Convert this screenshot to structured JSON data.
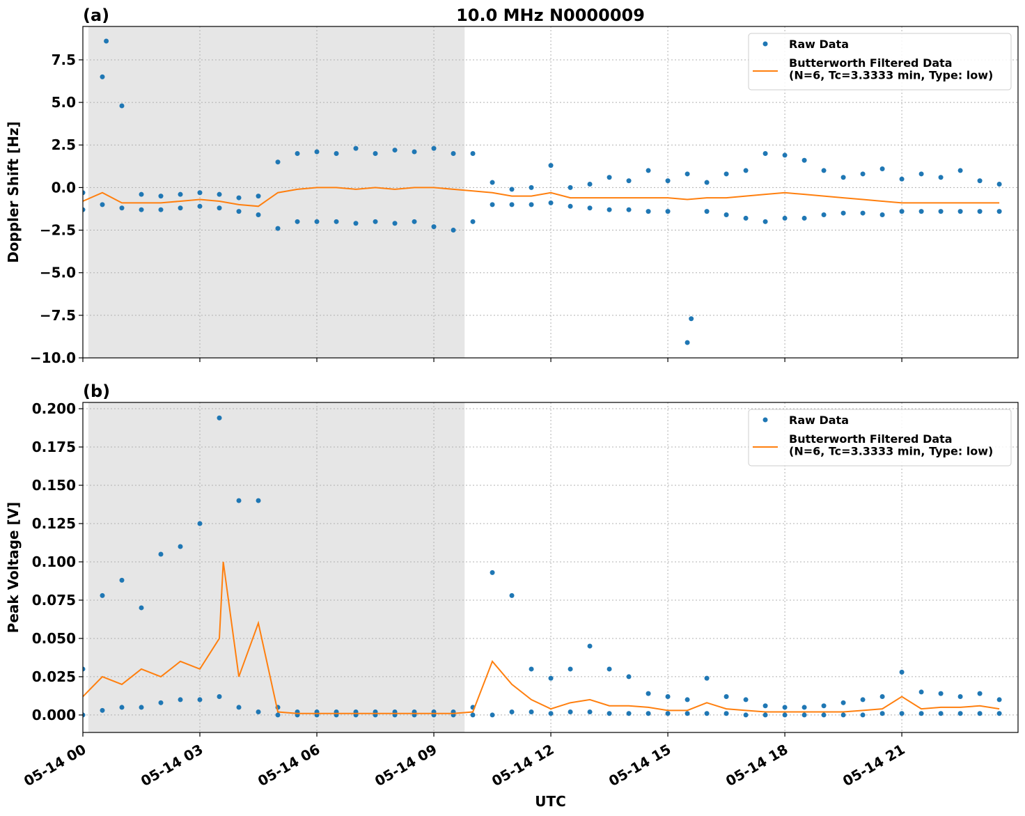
{
  "chart_data": [
    {
      "type": "scatter",
      "title": "10.0 MHz N0000009",
      "panel_label": "(a)",
      "ylabel": "Doppler Shift [Hz]",
      "xlim": [
        0,
        23.98
      ],
      "ylim": [
        -10,
        9.46
      ],
      "grid": true,
      "legend": "upper right",
      "shade": [
        0.14,
        9.79
      ],
      "xticks": [
        0,
        3,
        6,
        9,
        12,
        15,
        18,
        21
      ],
      "yticks": [
        {
          "value": -10,
          "label": "−10.0"
        },
        {
          "value": -7.5,
          "label": "−7.5"
        },
        {
          "value": -5,
          "label": "−5.0"
        },
        {
          "value": -2.5,
          "label": "−2.5"
        },
        {
          "value": 0,
          "label": "0.0"
        },
        {
          "value": 2.5,
          "label": "2.5"
        },
        {
          "value": 5,
          "label": "5.0"
        },
        {
          "value": 7.5,
          "label": "7.5"
        }
      ],
      "series": [
        {
          "name": "Raw Data",
          "style": "points",
          "color": "#1f77b4",
          "x": [
            0,
            0,
            0.5,
            0.5,
            1,
            1,
            1.5,
            1.5,
            2,
            2,
            2.5,
            2.5,
            3,
            3,
            3.5,
            3.5,
            4,
            4,
            4.5,
            4.5,
            5,
            5,
            5.5,
            5.5,
            6,
            6,
            6.5,
            6.5,
            7,
            7,
            7.5,
            7.5,
            8,
            8,
            8.5,
            8.5,
            9,
            9,
            9.5,
            9.5,
            10,
            10,
            10.5,
            10.5,
            11,
            11,
            11.5,
            11.5,
            12,
            12,
            12.5,
            12.5,
            13,
            13,
            13.5,
            13.5,
            14,
            14,
            14.5,
            14.5,
            15,
            15,
            15.5,
            15.5,
            16,
            16,
            16.5,
            16.5,
            17,
            17,
            17.5,
            17.5,
            18,
            18,
            18.5,
            18.5,
            19,
            19,
            19.5,
            19.5,
            20,
            20,
            20.5,
            20.5,
            21,
            21,
            21.5,
            21.5,
            22,
            22,
            22.5,
            22.5,
            23,
            23,
            23.5,
            23.5,
            0.6,
            15.6
          ],
          "values": [
            -0.3,
            -1.3,
            6.5,
            -1.0,
            4.8,
            -1.2,
            -0.4,
            -1.3,
            -0.5,
            -1.3,
            -0.4,
            -1.2,
            -0.3,
            -1.1,
            -0.4,
            -1.2,
            -0.6,
            -1.4,
            -0.5,
            -1.6,
            1.5,
            -2.4,
            2.0,
            -2.0,
            2.1,
            -2.0,
            2.0,
            -2.0,
            2.3,
            -2.1,
            2.0,
            -2.0,
            2.2,
            -2.1,
            2.1,
            -2.0,
            2.3,
            -2.3,
            2.0,
            -2.5,
            2.0,
            -2.0,
            0.3,
            -1.0,
            -0.1,
            -1.0,
            0.0,
            -1.0,
            1.3,
            -0.9,
            0.0,
            -1.1,
            0.2,
            -1.2,
            0.6,
            -1.3,
            0.4,
            -1.3,
            1.0,
            -1.4,
            0.4,
            -1.4,
            0.8,
            -9.1,
            0.3,
            -1.4,
            0.8,
            -1.6,
            1.0,
            -1.8,
            2.0,
            -2.0,
            1.9,
            -1.8,
            1.6,
            -1.8,
            1.0,
            -1.6,
            0.6,
            -1.5,
            0.8,
            -1.5,
            1.1,
            -1.6,
            0.5,
            -1.4,
            0.8,
            -1.4,
            0.6,
            -1.4,
            1.0,
            -1.4,
            0.4,
            -1.4,
            0.2,
            -1.4,
            8.6,
            -7.7
          ]
        },
        {
          "name": "Butterworth Filtered Data\n(N=6, Tc=3.3333 min, Type: low)",
          "style": "line",
          "color": "#ff7f0e",
          "x": [
            0,
            0.5,
            1,
            1.5,
            2,
            2.5,
            3,
            3.5,
            4,
            4.5,
            5,
            5.5,
            6,
            6.5,
            7,
            7.5,
            8,
            8.5,
            9,
            9.5,
            10,
            10.5,
            11,
            11.5,
            12,
            12.5,
            13,
            13.5,
            14,
            14.5,
            15,
            15.5,
            16,
            16.5,
            17,
            17.5,
            18,
            18.5,
            19,
            19.5,
            20,
            20.5,
            21,
            21.5,
            22,
            22.5,
            23,
            23.5
          ],
          "values": [
            -0.8,
            -0.3,
            -0.9,
            -0.9,
            -0.9,
            -0.8,
            -0.7,
            -0.8,
            -1.0,
            -1.1,
            -0.3,
            -0.1,
            0.0,
            0.0,
            -0.1,
            0.0,
            -0.1,
            0.0,
            0.0,
            -0.1,
            -0.2,
            -0.3,
            -0.5,
            -0.5,
            -0.3,
            -0.6,
            -0.6,
            -0.6,
            -0.6,
            -0.6,
            -0.6,
            -0.7,
            -0.6,
            -0.6,
            -0.5,
            -0.4,
            -0.3,
            -0.4,
            -0.5,
            -0.6,
            -0.7,
            -0.8,
            -0.9,
            -0.9,
            -0.9,
            -0.9,
            -0.9,
            -0.9
          ]
        }
      ]
    },
    {
      "type": "scatter",
      "panel_label": "(b)",
      "ylabel": "Peak Voltage [V]",
      "xlabel": "UTC",
      "xlim": [
        0,
        23.98
      ],
      "ylim": [
        -0.0114,
        0.2041
      ],
      "grid": true,
      "legend": "upper right",
      "shade": [
        0.14,
        9.79
      ],
      "xticks": [
        {
          "value": 0,
          "label": "05-14 00"
        },
        {
          "value": 3,
          "label": "05-14 03"
        },
        {
          "value": 6,
          "label": "05-14 06"
        },
        {
          "value": 9,
          "label": "05-14 09"
        },
        {
          "value": 12,
          "label": "05-14 12"
        },
        {
          "value": 15,
          "label": "05-14 15"
        },
        {
          "value": 18,
          "label": "05-14 18"
        },
        {
          "value": 21,
          "label": "05-14 21"
        }
      ],
      "yticks": [
        {
          "value": 0,
          "label": "0.000"
        },
        {
          "value": 0.025,
          "label": "0.025"
        },
        {
          "value": 0.05,
          "label": "0.050"
        },
        {
          "value": 0.075,
          "label": "0.075"
        },
        {
          "value": 0.1,
          "label": "0.100"
        },
        {
          "value": 0.125,
          "label": "0.125"
        },
        {
          "value": 0.15,
          "label": "0.150"
        },
        {
          "value": 0.175,
          "label": "0.175"
        },
        {
          "value": 0.2,
          "label": "0.200"
        }
      ],
      "series": [
        {
          "name": "Raw Data",
          "style": "points",
          "color": "#1f77b4",
          "x": [
            0,
            0,
            0.5,
            0.5,
            1,
            1,
            1.5,
            1.5,
            2,
            2,
            2.5,
            2.5,
            3,
            3,
            3.5,
            3.5,
            4,
            4,
            4.5,
            4.5,
            5,
            5,
            5.5,
            5.5,
            6,
            6,
            6.5,
            6.5,
            7,
            7,
            7.5,
            7.5,
            8,
            8,
            8.5,
            8.5,
            9,
            9,
            9.5,
            9.5,
            10,
            10,
            10.5,
            10.5,
            11,
            11,
            11.5,
            11.5,
            12,
            12,
            12.5,
            12.5,
            13,
            13,
            13.5,
            13.5,
            14,
            14,
            14.5,
            14.5,
            15,
            15,
            15.5,
            15.5,
            16,
            16,
            16.5,
            16.5,
            17,
            17,
            17.5,
            17.5,
            18,
            18,
            18.5,
            18.5,
            19,
            19,
            19.5,
            19.5,
            20,
            20,
            20.5,
            20.5,
            21,
            21,
            21.5,
            21.5,
            22,
            22,
            22.5,
            22.5,
            23,
            23,
            23.5,
            23.5
          ],
          "values": [
            0.03,
            0.0,
            0.078,
            0.003,
            0.088,
            0.005,
            0.07,
            0.005,
            0.105,
            0.008,
            0.11,
            0.01,
            0.125,
            0.01,
            0.194,
            0.012,
            0.14,
            0.005,
            0.14,
            0.002,
            0.005,
            0.0,
            0.002,
            0.0,
            0.002,
            0.0,
            0.002,
            0.0,
            0.002,
            0.0,
            0.002,
            0.0,
            0.002,
            0.0,
            0.002,
            0.0,
            0.002,
            0.0,
            0.002,
            0.0,
            0.005,
            0.0,
            0.093,
            0.0,
            0.078,
            0.002,
            0.03,
            0.002,
            0.024,
            0.001,
            0.03,
            0.002,
            0.045,
            0.002,
            0.03,
            0.001,
            0.025,
            0.001,
            0.014,
            0.001,
            0.012,
            0.001,
            0.01,
            0.001,
            0.024,
            0.001,
            0.012,
            0.001,
            0.01,
            0.0,
            0.006,
            0.0,
            0.005,
            0.0,
            0.005,
            0.0,
            0.006,
            0.0,
            0.008,
            0.0,
            0.01,
            0.0,
            0.012,
            0.001,
            0.028,
            0.001,
            0.015,
            0.001,
            0.014,
            0.001,
            0.012,
            0.001,
            0.014,
            0.001,
            0.01,
            0.001
          ]
        },
        {
          "name": "Butterworth Filtered Data\n(N=6, Tc=3.3333 min, Type: low)",
          "style": "line",
          "color": "#ff7f0e",
          "x": [
            0,
            0.5,
            1,
            1.5,
            2,
            2.5,
            3,
            3.5,
            3.6,
            4,
            4.5,
            5,
            5.5,
            6,
            6.5,
            7,
            7.5,
            8,
            8.5,
            9,
            9.5,
            10,
            10.5,
            11,
            11.5,
            12,
            12.5,
            13,
            13.5,
            14,
            14.5,
            15,
            15.5,
            16,
            16.5,
            17,
            17.5,
            18,
            18.5,
            19,
            19.5,
            20,
            20.5,
            21,
            21.5,
            22,
            22.5,
            23,
            23.5
          ],
          "values": [
            0.012,
            0.025,
            0.02,
            0.03,
            0.025,
            0.035,
            0.03,
            0.05,
            0.1,
            0.025,
            0.06,
            0.002,
            0.001,
            0.001,
            0.001,
            0.001,
            0.001,
            0.001,
            0.001,
            0.001,
            0.001,
            0.002,
            0.035,
            0.02,
            0.01,
            0.004,
            0.008,
            0.01,
            0.006,
            0.006,
            0.005,
            0.003,
            0.003,
            0.008,
            0.004,
            0.003,
            0.002,
            0.002,
            0.002,
            0.002,
            0.002,
            0.003,
            0.004,
            0.012,
            0.004,
            0.005,
            0.005,
            0.006,
            0.004
          ]
        }
      ]
    }
  ]
}
